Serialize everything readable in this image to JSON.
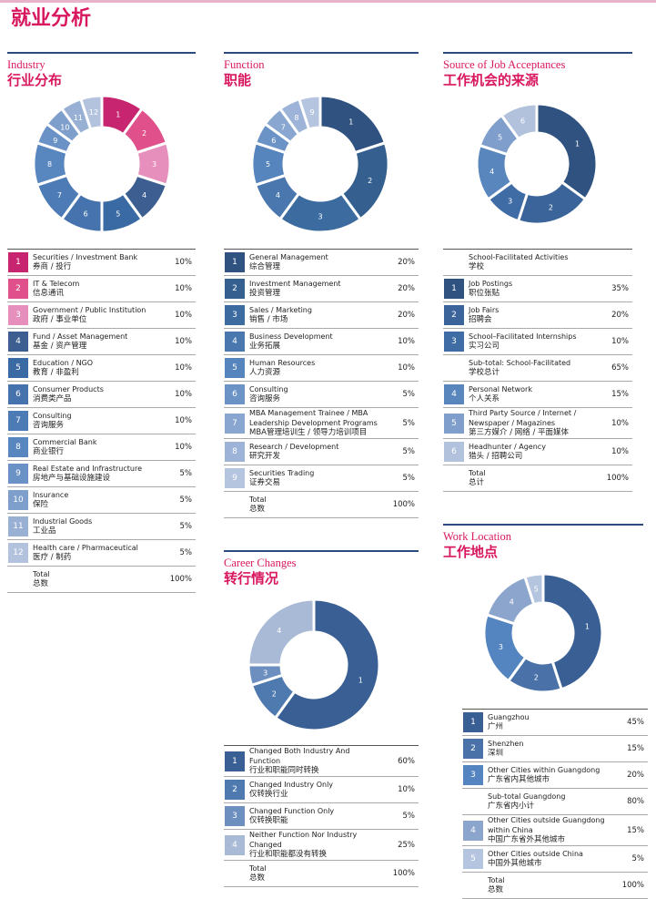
{
  "title": "就业分析",
  "sections": [
    {
      "title_en": "Industry",
      "title_zh": "行业分布",
      "rows": [
        {
          "num": 1,
          "en": "Securities / Investment Bank",
          "zh": "券商 / 投行",
          "pct": 10,
          "pct_label": "10%",
          "color": "#c7256f"
        },
        {
          "num": 2,
          "en": "IT & Telecom",
          "zh": "信息通讯",
          "pct": 10,
          "pct_label": "10%",
          "color": "#e0508a"
        },
        {
          "num": 3,
          "en": "Government / Public Institution",
          "zh": "政府 / 事业单位",
          "pct": 10,
          "pct_label": "10%",
          "color": "#e68fbd"
        },
        {
          "num": 4,
          "en": "Fund / Asset Management",
          "zh": "基金 / 资产管理",
          "pct": 10,
          "pct_label": "10%",
          "color": "#3d5e90"
        },
        {
          "num": 5,
          "en": "Education / NGO",
          "zh": "教育 / 非盈利",
          "pct": 10,
          "pct_label": "10%",
          "color": "#3a6aa4"
        },
        {
          "num": 6,
          "en": "Consumer Products",
          "zh": "消费类产品",
          "pct": 10,
          "pct_label": "10%",
          "color": "#4673ad"
        },
        {
          "num": 7,
          "en": "Consulting",
          "zh": "咨询服务",
          "pct": 10,
          "pct_label": "10%",
          "color": "#4d7bb6"
        },
        {
          "num": 8,
          "en": "Commercial Bank",
          "zh": "商业银行",
          "pct": 10,
          "pct_label": "10%",
          "color": "#5886bf"
        },
        {
          "num": 9,
          "en": "Real Estate and Infrastructure",
          "zh": "房地产与基础设施建设",
          "pct": 5,
          "pct_label": "5%",
          "color": "#6a92c6"
        },
        {
          "num": 10,
          "en": "Insurance",
          "zh": "保险",
          "pct": 5,
          "pct_label": "5%",
          "color": "#7e9fcb"
        },
        {
          "num": 11,
          "en": "Industrial Goods",
          "zh": "工业品",
          "pct": 5,
          "pct_label": "5%",
          "color": "#98b0d4"
        },
        {
          "num": 12,
          "en": "Health care / Pharmaceutical",
          "zh": "医疗 / 制药",
          "pct": 5,
          "pct_label": "5%",
          "color": "#b4c3dd"
        }
      ],
      "total": {
        "en": "Total",
        "zh": "总数",
        "pct": 100,
        "pct_label": "100%"
      }
    },
    {
      "title_en": "Function",
      "title_zh": "职能",
      "rows": [
        {
          "num": 1,
          "en": "General Management",
          "zh": "综合管理",
          "pct": 20,
          "pct_label": "20%",
          "color": "#2f5280"
        },
        {
          "num": 2,
          "en": "Investment Management",
          "zh": "投资管理",
          "pct": 20,
          "pct_label": "20%",
          "color": "#355f8f"
        },
        {
          "num": 3,
          "en": "Sales / Marketing",
          "zh": "销售 / 市场",
          "pct": 20,
          "pct_label": "20%",
          "color": "#3b6b9f"
        },
        {
          "num": 4,
          "en": "Business Development",
          "zh": "业务拓展",
          "pct": 10,
          "pct_label": "10%",
          "color": "#4a77ae"
        },
        {
          "num": 5,
          "en": "Human Resources",
          "zh": "人力资源",
          "pct": 10,
          "pct_label": "10%",
          "color": "#5684bd"
        },
        {
          "num": 6,
          "en": "Consulting",
          "zh": "咨询服务",
          "pct": 5,
          "pct_label": "5%",
          "color": "#6c93c6"
        },
        {
          "num": 7,
          "en": "MBA Management Trainee / MBA Leadership Development Programs",
          "zh": "MBA管理培训生 / 领导力培训项目",
          "pct": 5,
          "pct_label": "5%",
          "color": "#88a6cf"
        },
        {
          "num": 8,
          "en": "Research / Development",
          "zh": "研究开发",
          "pct": 5,
          "pct_label": "5%",
          "color": "#9db4d8"
        },
        {
          "num": 9,
          "en": "Securities Trading",
          "zh": "证券交易",
          "pct": 5,
          "pct_label": "5%",
          "color": "#b5c4df"
        }
      ],
      "total": {
        "en": "Total",
        "zh": "总数",
        "pct": 100,
        "pct_label": "100%"
      }
    },
    {
      "title_en": "Source of Job Acceptances",
      "title_zh": "工作机会的来源",
      "rows": [
        {
          "en": "School-Facilitated Activities",
          "zh": "学校"
        },
        {
          "num": 1,
          "en": "Job Postings",
          "zh": "职位张贴",
          "pct": 35,
          "pct_label": "35%",
          "color": "#2f5280"
        },
        {
          "num": 2,
          "en": "Job Fairs",
          "zh": "招聘会",
          "pct": 20,
          "pct_label": "20%",
          "color": "#3a649a"
        },
        {
          "num": 3,
          "en": "School–Facilitated Internships",
          "zh": "实习公司",
          "pct": 10,
          "pct_label": "10%",
          "color": "#3f6ca5"
        },
        {
          "en": "Sub-total: School-Facilitated",
          "zh": "学校总计",
          "pct": 65,
          "pct_label": "65%"
        },
        {
          "num": 4,
          "en": "Personal Network",
          "zh": "个人关系",
          "pct": 15,
          "pct_label": "15%",
          "color": "#5a86be"
        },
        {
          "num": 5,
          "en": "Third Party Source / Internet / Newspaper / Magazines",
          "zh": "第三方媒介 / 网络 / 平面媒体",
          "pct": 10,
          "pct_label": "10%",
          "color": "#7f9ecb"
        },
        {
          "num": 6,
          "en": "Headhunter / Agency",
          "zh": "猎头 / 招聘公司",
          "pct": 10,
          "pct_label": "10%",
          "color": "#b2c2dd"
        }
      ],
      "total": {
        "en": "Total",
        "zh": "总计",
        "pct": 100,
        "pct_label": "100%"
      }
    },
    {
      "title_en": "Career Changes",
      "title_zh": "转行情况",
      "rows": [
        {
          "num": 1,
          "en": "Changed Both Industry And Function",
          "zh": "行业和职能同时转换",
          "pct": 60,
          "pct_label": "60%",
          "color": "#3a5f94"
        },
        {
          "num": 2,
          "en": "Changed Industry Only",
          "zh": "仅转换行业",
          "pct": 10,
          "pct_label": "10%",
          "color": "#4f7ab0"
        },
        {
          "num": 3,
          "en": "Changed Function Only",
          "zh": "仅转换职能",
          "pct": 5,
          "pct_label": "5%",
          "color": "#6d8fc0"
        },
        {
          "num": 4,
          "en": "Neither Function Nor Industry Changed",
          "zh": "行业和职能都没有转换",
          "pct": 25,
          "pct_label": "25%",
          "color": "#a9bad6"
        }
      ],
      "total": {
        "en": "Total",
        "zh": "总数",
        "pct": 100,
        "pct_label": "100%"
      }
    },
    {
      "title_en": "Work Location",
      "title_zh": "工作地点",
      "rows": [
        {
          "num": 1,
          "en": "Guangzhou",
          "zh": "广州",
          "pct": 45,
          "pct_label": "45%",
          "color": "#3a5f94"
        },
        {
          "num": 2,
          "en": "Shenzhen",
          "zh": "深圳",
          "pct": 15,
          "pct_label": "15%",
          "color": "#4a72a8"
        },
        {
          "num": 3,
          "en": "Other Cities within Guangdong",
          "zh": "广东省内其他城市",
          "pct": 20,
          "pct_label": "20%",
          "color": "#5585c0"
        },
        {
          "en": "Sub-total Guangdong",
          "zh": "广东省内小计",
          "pct": 80,
          "pct_label": "80%"
        },
        {
          "num": 4,
          "en": "Other Cities outside Guangdong within China",
          "zh": "中国广东省外其他城市",
          "pct": 15,
          "pct_label": "15%",
          "color": "#8ca5cd"
        },
        {
          "num": 5,
          "en": "Other Cities outside China",
          "zh": "中国外其他城市",
          "pct": 5,
          "pct_label": "5%",
          "color": "#b6c5df"
        }
      ],
      "total": {
        "en": "Total",
        "zh": "总数",
        "pct": 100,
        "pct_label": "100%"
      }
    }
  ]
}
